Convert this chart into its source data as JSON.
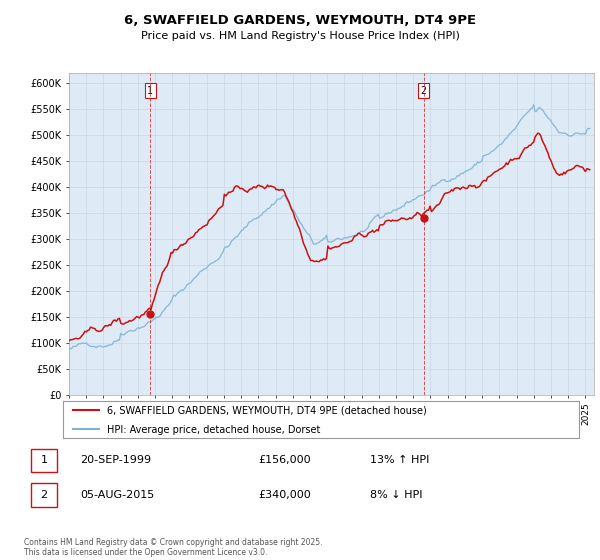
{
  "title": "6, SWAFFIELD GARDENS, WEYMOUTH, DT4 9PE",
  "subtitle": "Price paid vs. HM Land Registry's House Price Index (HPI)",
  "ylim": [
    0,
    620000
  ],
  "xlim_start": 1995.0,
  "xlim_end": 2025.5,
  "hpi_color": "#7ab3d4",
  "price_color": "#cc1111",
  "chart_bg": "#deeaf5",
  "marker1_x": 1999.72,
  "marker1_y": 156000,
  "marker2_x": 2015.6,
  "marker2_y": 340000,
  "legend_line1": "6, SWAFFIELD GARDENS, WEYMOUTH, DT4 9PE (detached house)",
  "legend_line2": "HPI: Average price, detached house, Dorset",
  "table_row1": [
    "1",
    "20-SEP-1999",
    "£156,000",
    "13% ↑ HPI"
  ],
  "table_row2": [
    "2",
    "05-AUG-2015",
    "£340,000",
    "8% ↓ HPI"
  ],
  "footer": "Contains HM Land Registry data © Crown copyright and database right 2025.\nThis data is licensed under the Open Government Licence v3.0.",
  "background_color": "#ffffff",
  "grid_color": "#c8d8e8"
}
